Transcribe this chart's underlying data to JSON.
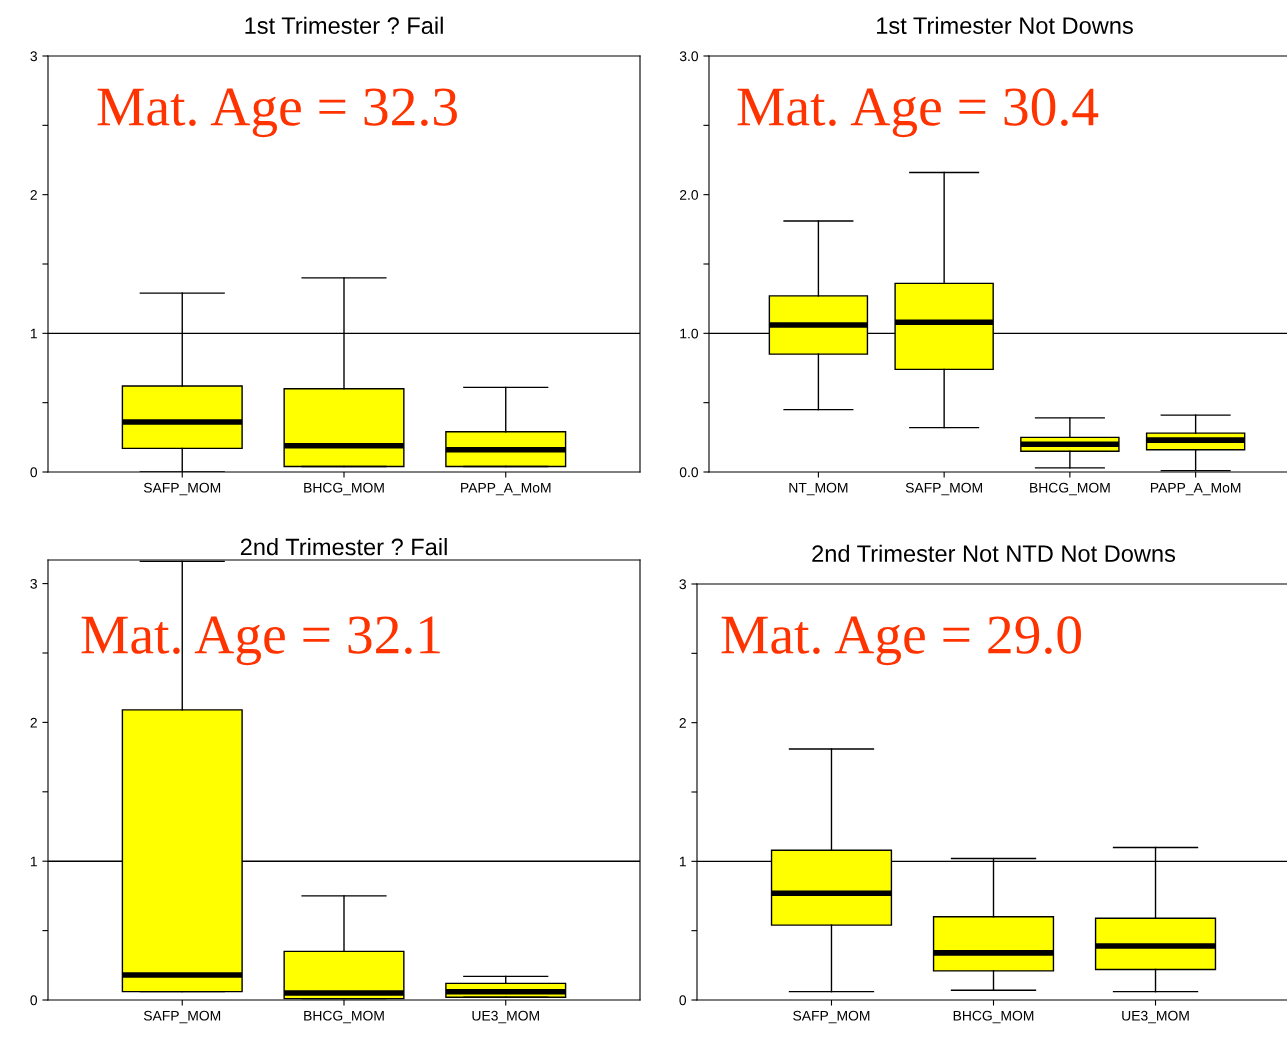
{
  "chart_data": [
    {
      "type": "box",
      "title": "1st Trimester ? Fail",
      "annotations": [
        "Mat. Age = 32.3"
      ],
      "categories": [
        "SAFP_MOM",
        "BHCG_MOM",
        "PAPP_A_MoM"
      ],
      "color": "#ffff00",
      "grid": false,
      "ylim": [
        0,
        3
      ],
      "yticks": [
        0,
        {
          "value": 0.5,
          "label": null
        },
        1,
        {
          "value": 1.5,
          "label": null
        },
        2,
        {
          "value": 2.5,
          "label": null
        },
        3
      ],
      "ref_lines": [
        {
          "axis": "y",
          "value": 1,
          "color": "#000000"
        }
      ],
      "boxes": [
        {
          "low": 0.0,
          "q1": 0.17,
          "median": 0.36,
          "q3": 0.62,
          "high": 1.29
        },
        {
          "low": 0.04,
          "q1": 0.04,
          "median": 0.19,
          "q3": 0.6,
          "high": 1.4
        },
        {
          "low": 0.04,
          "q1": 0.04,
          "median": 0.16,
          "q3": 0.29,
          "high": 0.61
        }
      ]
    },
    {
      "type": "box",
      "title": "1st Trimester Not Downs",
      "annotations": [
        "Mat. Age = 30.4"
      ],
      "categories": [
        "NT_MOM",
        "SAFP_MOM",
        "BHCG_MOM",
        "PAPP_A_MoM"
      ],
      "color": "#ffff00",
      "grid": false,
      "ylim": [
        0,
        3
      ],
      "yticks": [
        {
          "value": 0,
          "label": "0.0"
        },
        {
          "value": 0.5,
          "label": null
        },
        {
          "value": 1,
          "label": "1.0"
        },
        {
          "value": 1.5,
          "label": null
        },
        {
          "value": 2,
          "label": "2.0"
        },
        {
          "value": 2.5,
          "label": null
        },
        {
          "value": 3,
          "label": "3.0"
        }
      ],
      "ref_lines": [
        {
          "axis": "y",
          "value": 1,
          "color": "#000000"
        }
      ],
      "boxes": [
        {
          "low": 0.45,
          "q1": 0.85,
          "median": 1.06,
          "q3": 1.27,
          "high": 1.81
        },
        {
          "low": 0.32,
          "q1": 0.74,
          "median": 1.08,
          "q3": 1.36,
          "high": 2.16
        },
        {
          "low": 0.03,
          "q1": 0.15,
          "median": 0.2,
          "q3": 0.25,
          "high": 0.39
        },
        {
          "low": 0.01,
          "q1": 0.16,
          "median": 0.23,
          "q3": 0.28,
          "high": 0.41
        }
      ]
    },
    {
      "type": "box",
      "title": "2nd Trimester ? Fail",
      "annotations": [
        "Mat. Age = 32.1"
      ],
      "categories": [
        "SAFP_MOM",
        "BHCG_MOM",
        "UE3_MOM"
      ],
      "color": "#ffff00",
      "grid": false,
      "ylim": [
        0,
        3.17
      ],
      "yticks": [
        0,
        {
          "value": 0.5,
          "label": null
        },
        1,
        {
          "value": 1.5,
          "label": null
        },
        2,
        {
          "value": 2.5,
          "label": null
        },
        3
      ],
      "ref_lines": [
        {
          "axis": "y",
          "value": 1,
          "color": "#000000"
        }
      ],
      "boxes": [
        {
          "low": 0.06,
          "q1": 0.06,
          "median": 0.18,
          "q3": 2.09,
          "high": 3.16
        },
        {
          "low": 0.01,
          "q1": 0.01,
          "median": 0.05,
          "q3": 0.35,
          "high": 0.75
        },
        {
          "low": 0.02,
          "q1": 0.02,
          "median": 0.06,
          "q3": 0.12,
          "high": 0.17
        }
      ]
    },
    {
      "type": "box",
      "title": "2nd Trimester Not NTD Not Downs",
      "annotations": [
        "Mat. Age = 29.0"
      ],
      "categories": [
        "SAFP_MOM",
        "BHCG_MOM",
        "UE3_MOM"
      ],
      "color": "#ffff00",
      "grid": false,
      "ylim": [
        0,
        3
      ],
      "yticks": [
        0,
        {
          "value": 0.5,
          "label": null
        },
        1,
        {
          "value": 1.5,
          "label": null
        },
        2,
        {
          "value": 2.5,
          "label": null
        },
        3
      ],
      "ref_lines": [
        {
          "axis": "y",
          "value": 1,
          "color": "#000000"
        }
      ],
      "boxes": [
        {
          "low": 0.06,
          "q1": 0.54,
          "median": 0.77,
          "q3": 1.08,
          "high": 1.81
        },
        {
          "low": 0.07,
          "q1": 0.21,
          "median": 0.34,
          "q3": 0.6,
          "high": 1.02
        },
        {
          "low": 0.06,
          "q1": 0.22,
          "median": 0.39,
          "q3": 0.59,
          "high": 1.1
        }
      ]
    }
  ]
}
